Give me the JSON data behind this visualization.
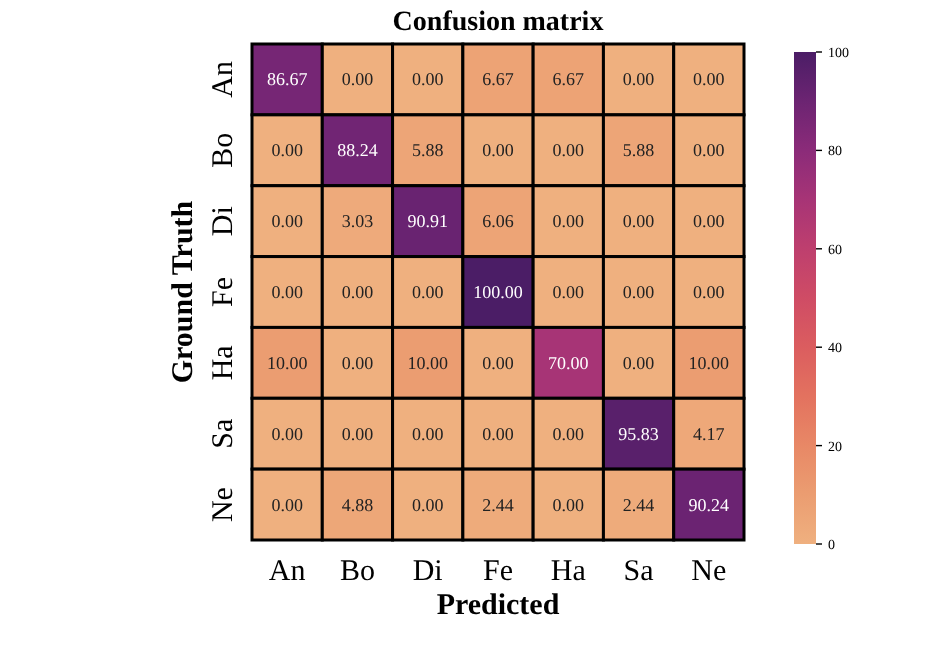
{
  "chart_data": {
    "type": "heatmap",
    "title": "Confusion matrix",
    "xlabel": "Predicted",
    "ylabel": "Ground Truth",
    "categories": [
      "An",
      "Bo",
      "Di",
      "Fe",
      "Ha",
      "Sa",
      "Ne"
    ],
    "y_categories": [
      "An",
      "Bo",
      "Di",
      "Fe",
      "Ha",
      "Sa",
      "Ne"
    ],
    "cells": [
      [
        86.67,
        0,
        0,
        6.67,
        6.67,
        0,
        0
      ],
      [
        0,
        88.24,
        5.88,
        0,
        0,
        5.88,
        0
      ],
      [
        0,
        3.03,
        90.91,
        6.06,
        0,
        0,
        0
      ],
      [
        0,
        0,
        0,
        100,
        0,
        0,
        0
      ],
      [
        10,
        0,
        10,
        0,
        70,
        0,
        10
      ],
      [
        0,
        0,
        0,
        0,
        0,
        95.83,
        4.17
      ],
      [
        0,
        4.88,
        0,
        2.44,
        0,
        2.44,
        90.24
      ]
    ],
    "cell_labels": [
      [
        "86.67",
        "0.00",
        "0.00",
        "6.67",
        "6.67",
        "0.00",
        "0.00"
      ],
      [
        "0.00",
        "88.24",
        "5.88",
        "0.00",
        "0.00",
        "5.88",
        "0.00"
      ],
      [
        "0.00",
        "3.03",
        "90.91",
        "6.06",
        "0.00",
        "0.00",
        "0.00"
      ],
      [
        "0.00",
        "0.00",
        "0.00",
        "100.00",
        "0.00",
        "0.00",
        "0.00"
      ],
      [
        "10.00",
        "0.00",
        "10.00",
        "0.00",
        "70.00",
        "0.00",
        "10.00"
      ],
      [
        "0.00",
        "0.00",
        "0.00",
        "0.00",
        "0.00",
        "95.83",
        "4.17"
      ],
      [
        "0.00",
        "4.88",
        "0.00",
        "2.44",
        "0.00",
        "2.44",
        "90.24"
      ]
    ],
    "clim": [
      0,
      100
    ],
    "cticks": [
      0,
      20,
      40,
      60,
      80,
      100
    ]
  }
}
